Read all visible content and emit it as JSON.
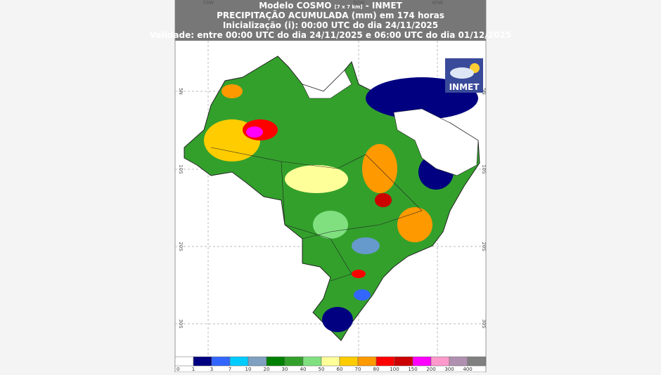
{
  "header": {
    "model": "Modelo COSMO",
    "resolution": "[7 x 7 km]",
    "agency": "- INMET",
    "title": "PRECIPITAÇÃO ACUMULADA (mm) em 174 horas",
    "init": "Inicialização (i): 00:00 UTC do dia 24/11/2025",
    "validity": "Validade: entre 00:00 UTC do dia 24/11/2025 e 06:00 UTC do dia 01/12/2025"
  },
  "logo": "INMET",
  "lon_labels": [
    "70W",
    "50W",
    "40W"
  ],
  "lat_labels": [
    "5N",
    "10S",
    "20S",
    "30S"
  ],
  "legend": {
    "labels": [
      "0",
      "1",
      "3",
      "7",
      "10",
      "20",
      "30",
      "40",
      "50",
      "60",
      "70",
      "80",
      "100",
      "150",
      "200",
      "300",
      "400"
    ]
  }
}
